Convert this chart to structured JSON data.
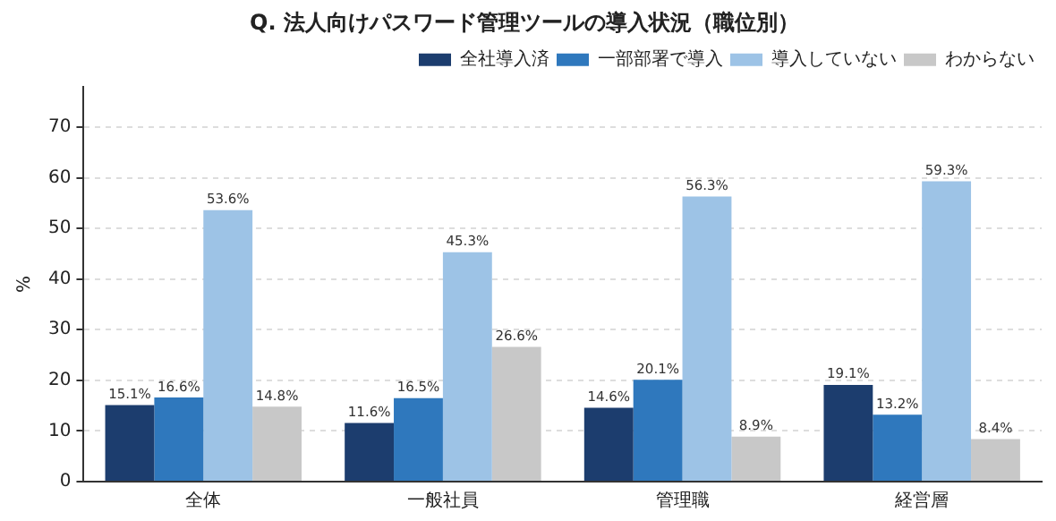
{
  "chart_data": {
    "type": "bar",
    "title": "Q. 法人向けパスワード管理ツールの導入状況（職位別）",
    "ylabel": "%",
    "categories": [
      "全体",
      "一般社員",
      "管理職",
      "経営層"
    ],
    "series": [
      {
        "name": "全社導入済",
        "color": "#1c3d6e",
        "values": [
          15.1,
          11.6,
          14.6,
          19.1
        ],
        "value_labels": [
          "15.1%",
          "11.6%",
          "14.6%",
          "19.1%"
        ]
      },
      {
        "name": "一部部署で導入",
        "color": "#2f78bd",
        "values": [
          16.6,
          16.5,
          20.1,
          13.2
        ],
        "value_labels": [
          "16.6%",
          "16.5%",
          "20.1%",
          "13.2%"
        ]
      },
      {
        "name": "導入していない",
        "color": "#9dc3e6",
        "values": [
          53.6,
          45.3,
          56.3,
          59.3
        ],
        "value_labels": [
          "53.6%",
          "45.3%",
          "56.3%",
          "59.3%"
        ]
      },
      {
        "name": "わからない",
        "color": "#c8c8c8",
        "values": [
          14.8,
          26.6,
          8.9,
          8.4
        ],
        "value_labels": [
          "14.8%",
          "26.6%",
          "8.9%",
          "8.4%"
        ]
      }
    ],
    "ylim": [
      0,
      78
    ],
    "yticks": [
      0,
      10,
      20,
      30,
      40,
      50,
      60,
      70
    ],
    "grid": "y",
    "legend": "top right"
  }
}
